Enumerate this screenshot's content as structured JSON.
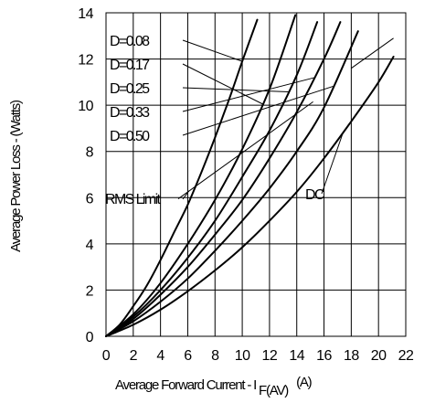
{
  "chart_data": {
    "type": "line",
    "xlabel": "Average Forward Current - I",
    "xlabel_subscript": "F(AV)",
    "xlabel_unit": "(A)",
    "ylabel": "Average Power Loss - (Watts)",
    "xlim": [
      0,
      22
    ],
    "ylim": [
      0,
      14
    ],
    "x_ticks": [
      0,
      2,
      4,
      6,
      8,
      10,
      12,
      14,
      16,
      18,
      20,
      22
    ],
    "y_ticks": [
      0,
      2,
      4,
      6,
      8,
      10,
      12,
      14
    ],
    "grid": true,
    "series": [
      {
        "name": "D=0.08",
        "x": [
          0,
          1,
          2,
          3,
          4,
          5,
          6,
          7,
          8,
          9,
          10,
          11.1
        ],
        "y": [
          0,
          0.5,
          1.3,
          2.2,
          3.3,
          4.5,
          5.7,
          7.1,
          8.6,
          10.2,
          11.9,
          13.7
        ]
      },
      {
        "name": "D=0.17",
        "x": [
          0,
          2,
          4,
          6,
          8,
          10,
          12,
          13.9
        ],
        "y": [
          0,
          0.95,
          2.3,
          4.0,
          5.9,
          8.1,
          10.7,
          13.9
        ]
      },
      {
        "name": "D=0.25",
        "x": [
          0,
          2,
          4,
          6,
          8,
          10,
          12,
          14,
          15.5
        ],
        "y": [
          0,
          0.85,
          2.0,
          3.4,
          5.0,
          6.9,
          8.9,
          11.3,
          13.6
        ]
      },
      {
        "name": "D=0.33",
        "x": [
          0,
          2,
          4,
          6,
          8,
          10,
          12,
          14,
          16,
          17.2
        ],
        "y": [
          0,
          0.75,
          1.8,
          3.0,
          4.4,
          5.9,
          7.7,
          9.7,
          12.0,
          13.6
        ]
      },
      {
        "name": "D=0.50",
        "x": [
          0,
          2,
          4,
          6,
          8,
          10,
          12,
          14,
          16,
          18.5
        ],
        "y": [
          0,
          0.65,
          1.5,
          2.5,
          3.7,
          5.0,
          6.4,
          8.0,
          9.9,
          13.2
        ]
      },
      {
        "name": "DC",
        "x": [
          0,
          2,
          4,
          6,
          8,
          10,
          12,
          14,
          16,
          18,
          20,
          21.1
        ],
        "y": [
          0,
          0.5,
          1.15,
          1.95,
          2.85,
          3.85,
          5.0,
          6.25,
          7.7,
          9.3,
          11.0,
          12.1
        ]
      }
    ],
    "annotations": {
      "rms_limit": "RMS Limit",
      "dc": "DC"
    }
  }
}
